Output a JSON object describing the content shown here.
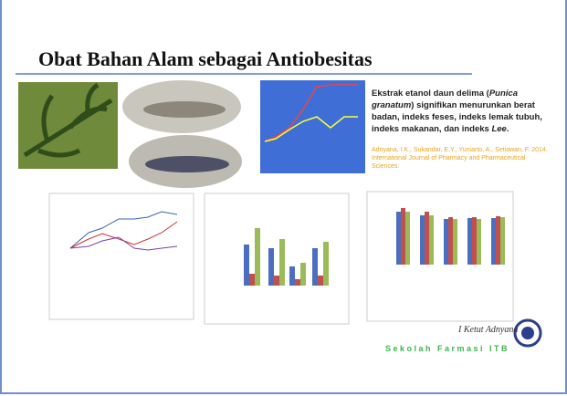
{
  "header": {
    "title": "Obat Bahan Alam sebagai Antiobesitas"
  },
  "finding": {
    "before": "Ekstrak etanol daun delima (",
    "species": "Punica granatum",
    "after": ") signifikan menurunkan berat badan, indeks feses, indeks lemak tubuh, indeks makanan, dan indeks ",
    "lee": "Lee",
    "end": "."
  },
  "citation": "Adnyana, I.K., Sukandar, E.Y., Yuniarto, A., Setiawan, F. 2014. International Journal of Pharmacy and Pharmaceutical Sciences.",
  "footer": {
    "signature": "I Ketut Adnyana",
    "institution": "Sekolah Farmasi ITB"
  }
}
